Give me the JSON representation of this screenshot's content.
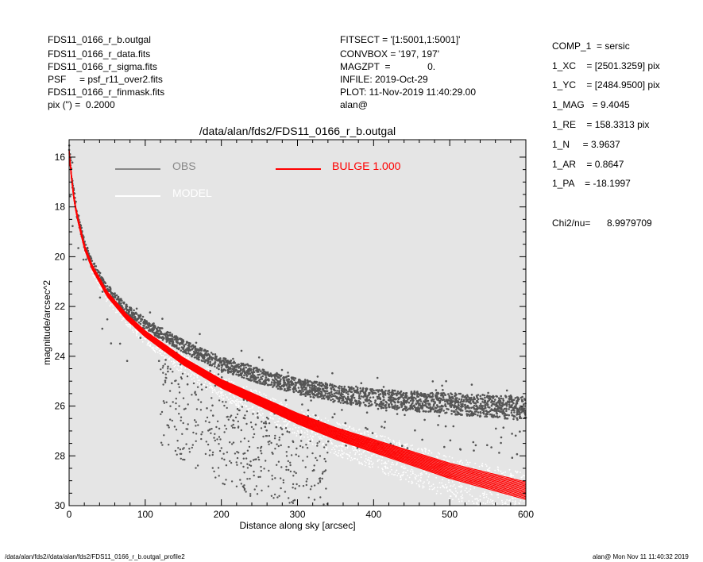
{
  "header_left": [
    "FDS11_0166_r_b.outgal",
    "FDS11_0166_r_data.fits",
    "FDS11_0166_r_sigma.fits",
    "PSF     = psf_r11_over2.fits",
    "FDS11_0166_r_finmask.fits",
    "pix (\") =  0.2000"
  ],
  "header_mid": [
    "FITSECT = '[1:5001,1:5001]'",
    "CONVBOX = '197, 197'",
    "MAGZPT  =              0.",
    "INFILE: 2019-Oct-29",
    "PLOT: 11-Nov-2019 11:40:29.00",
    "alan@"
  ],
  "params": [
    "COMP_1  = sersic",
    "1_XC    = [2501.3259] pix",
    "1_YC    = [2484.9500] pix",
    "1_MAG   = 9.4045",
    "1_RE    = 158.3313 pix",
    "1_N     = 3.9637",
    "1_AR    = 0.8647",
    "1_PA    = -18.1997"
  ],
  "chi2": {
    "label": "Chi2/nu=",
    "value": "8.9979709"
  },
  "footer_left": "/data/alan/fds2//data/alan/fds2/FDS11_0166_r_b.outgal_profile2",
  "footer_right": "alan@  Mon Nov 11 11:40:32 2019",
  "colors": {
    "background": "#e5e5e5",
    "obs": "#555555",
    "model": "#ffffff",
    "bulge": "#ff0000"
  },
  "chart_data": {
    "type": "scatter",
    "title": "/data/alan/fds2/FDS11_0166_r_b.outgal",
    "xlabel": "Distance along sky [arcsec]",
    "ylabel": "magnitude/arcsec^2",
    "xlim": [
      0,
      600
    ],
    "ylim": [
      30,
      15.3
    ],
    "y_inverted": true,
    "xticks": [
      0,
      100,
      200,
      300,
      400,
      500,
      600
    ],
    "yticks": [
      16,
      18,
      20,
      22,
      24,
      26,
      28,
      30
    ],
    "grid": false,
    "legend_placement": "top",
    "legend": [
      {
        "name": "OBS",
        "color": "#888888"
      },
      {
        "name": "MODEL",
        "color": "#ffffff"
      },
      {
        "name": "BULGE  1.000",
        "color": "#ff0000"
      }
    ],
    "series": [
      {
        "name": "OBS",
        "x": [
          0,
          5,
          10,
          20,
          30,
          50,
          75,
          100,
          150,
          200,
          250,
          300,
          350,
          400,
          450,
          500,
          550,
          600
        ],
        "y": [
          15.6,
          17.2,
          18.2,
          19.5,
          20.3,
          21.3,
          22.1,
          22.7,
          23.6,
          24.3,
          24.8,
          25.2,
          25.5,
          25.7,
          25.8,
          25.9,
          26.0,
          26.1
        ]
      },
      {
        "name": "MODEL",
        "x": [
          0,
          5,
          10,
          20,
          30,
          50,
          75,
          100,
          150,
          200,
          250,
          300,
          350,
          400,
          450,
          500,
          550,
          600
        ],
        "y": [
          15.8,
          17.4,
          18.3,
          19.6,
          20.4,
          21.5,
          22.4,
          23.1,
          24.2,
          25.1,
          25.8,
          26.5,
          27.1,
          27.6,
          28.1,
          28.6,
          29.0,
          29.4
        ]
      },
      {
        "name": "BULGE  1.000",
        "x": [
          0,
          5,
          10,
          20,
          30,
          50,
          75,
          100,
          150,
          200,
          250,
          300,
          350,
          400,
          450,
          500,
          550,
          600
        ],
        "y": [
          15.8,
          17.4,
          18.3,
          19.6,
          20.4,
          21.5,
          22.4,
          23.1,
          24.2,
          25.1,
          25.8,
          26.5,
          27.1,
          27.6,
          28.1,
          28.6,
          29.0,
          29.4
        ]
      }
    ]
  }
}
